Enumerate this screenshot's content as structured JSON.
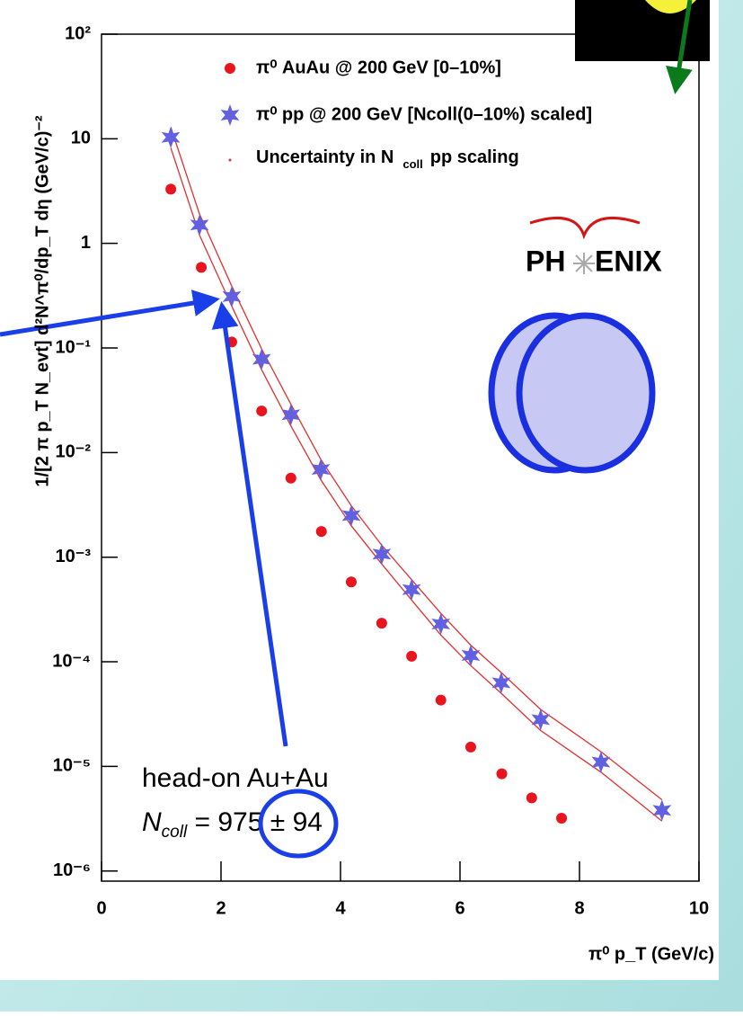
{
  "chart_data": {
    "type": "scatter",
    "ylabel": "1/[2 π p_T N_evt] d²N^π⁰/dp_T dη (GeV/c)⁻²",
    "xlabel": "π⁰ p_T (GeV/c)",
    "log_y": true,
    "xlim": [
      0,
      10
    ],
    "ylim": [
      8e-07,
      100
    ],
    "xticks": [
      0,
      2,
      4,
      6,
      8,
      10
    ],
    "yticks": [
      {
        "value": 100,
        "label": "10²"
      },
      10,
      1,
      {
        "value": 0.1,
        "label": "10⁻¹"
      },
      {
        "value": 0.01,
        "label": "10⁻²"
      },
      {
        "value": 0.001,
        "label": "10⁻³"
      },
      {
        "value": 0.0001,
        "label": "10⁻⁴"
      },
      {
        "value": 1e-05,
        "label": "10⁻⁵"
      },
      {
        "value": 1e-06,
        "label": "10⁻⁶"
      }
    ],
    "series": [
      {
        "name": "π⁰ AuAu @ 200 GeV [0–10%]",
        "color": "#e8141e",
        "marker": "circle",
        "x": [
          1.16,
          1.67,
          2.18,
          2.68,
          3.17,
          3.68,
          4.18,
          4.69,
          5.19,
          5.68,
          6.18,
          6.7,
          7.2,
          7.7
        ],
        "values": [
          3.3,
          0.59,
          0.114,
          0.025,
          0.0057,
          0.00176,
          0.00058,
          0.000234,
          0.000113,
          4.3e-05,
          1.53e-05,
          8.5e-06,
          5e-06,
          3.2e-06
        ]
      },
      {
        "name": "π⁰ pp @ 200 GeV [Ncoll(0–10%) scaled]",
        "color": "#6060e0",
        "marker": "star",
        "x": [
          1.16,
          1.64,
          2.18,
          2.68,
          3.17,
          3.67,
          4.18,
          4.69,
          5.19,
          5.68,
          6.18,
          6.69,
          7.35,
          8.36,
          9.38
        ],
        "values": [
          10.3,
          1.5,
          0.31,
          0.078,
          0.023,
          0.0069,
          0.0025,
          0.00107,
          0.00049,
          0.00023,
          0.000115,
          6.3e-05,
          2.8e-05,
          1.1e-05,
          3.8e-06
        ]
      }
    ],
    "band": {
      "name": "Uncertainty in N",
      "name_sub": "coll",
      "name_tail": "pp scaling",
      "color": "#e03030",
      "x": [
        1.16,
        1.64,
        2.18,
        2.68,
        3.17,
        3.67,
        4.18,
        4.69,
        5.19,
        5.68,
        6.18,
        6.69,
        7.35,
        8.36,
        9.38
      ],
      "high": [
        12.9,
        1.9,
        0.39,
        0.098,
        0.029,
        0.0086,
        0.0031,
        0.0013,
        0.00061,
        0.00029,
        0.000144,
        7.9e-05,
        3.5e-05,
        1.38e-05,
        4.8e-06
      ],
      "low": [
        8.2,
        1.2,
        0.25,
        0.062,
        0.018,
        0.0055,
        0.002,
        0.00086,
        0.00039,
        0.00018,
        9.2e-05,
        5e-05,
        2.2e-05,
        8.8e-06,
        3e-06
      ]
    },
    "annotation": {
      "line1": "head-on Au+Au",
      "n": "N",
      "n_sub": "coll",
      "n_value": " = 975 ± 94"
    },
    "logo": {
      "left": "PH",
      "right": "ENIX"
    }
  }
}
